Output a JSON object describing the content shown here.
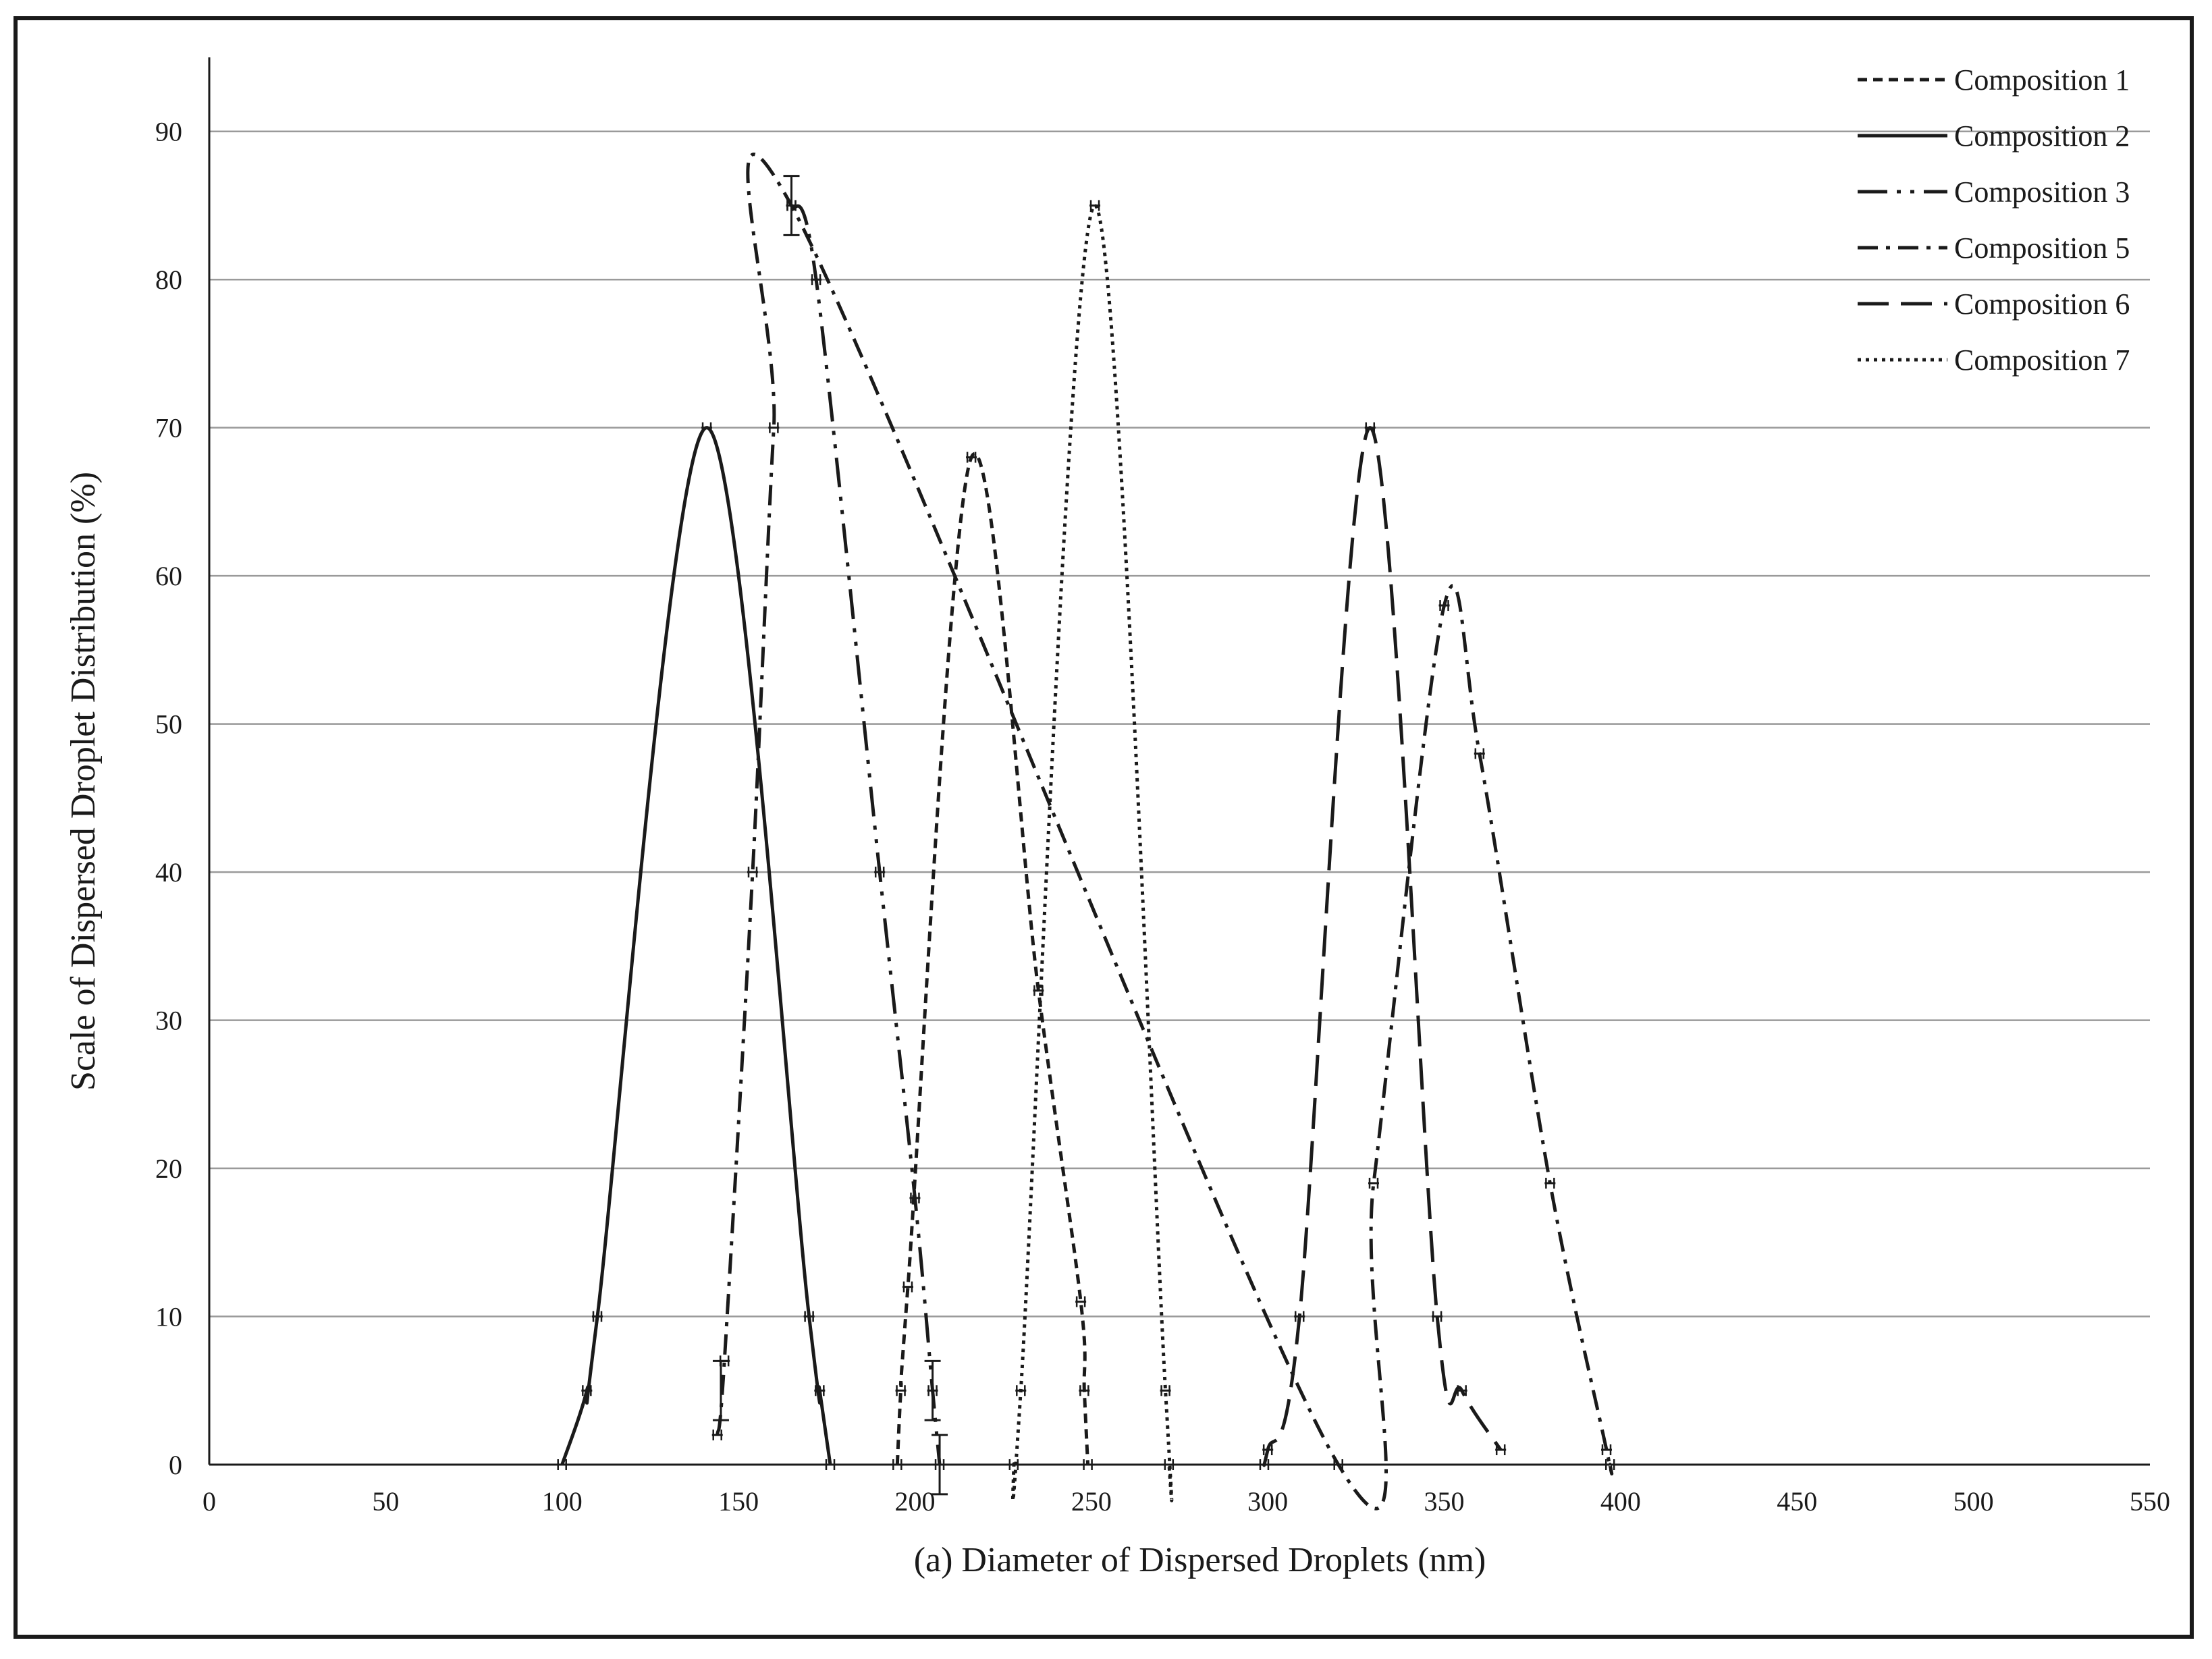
{
  "chart_data": {
    "type": "line",
    "title": "",
    "xlabel": "(a)   Diameter of Dispersed Droplets (nm)",
    "ylabel": "Scale of Dispersed Droplet Distribution (%)",
    "xlim": [
      0,
      550
    ],
    "ylim": [
      0,
      95
    ],
    "x_ticks": [
      0,
      50,
      100,
      150,
      200,
      250,
      300,
      350,
      400,
      450,
      500,
      550
    ],
    "y_ticks": [
      0,
      10,
      20,
      30,
      40,
      50,
      60,
      70,
      80,
      90
    ],
    "grid": "horizontal",
    "legend_position": "top-right",
    "series": [
      {
        "name": "Composition 1",
        "style": "short-dash",
        "points": [
          [
            195,
            0
          ],
          [
            196,
            5
          ],
          [
            198,
            12
          ],
          [
            216,
            68
          ],
          [
            235,
            32
          ],
          [
            247,
            11
          ],
          [
            248,
            5
          ],
          [
            249,
            0
          ]
        ]
      },
      {
        "name": "Composition 2",
        "style": "solid",
        "points": [
          [
            100,
            0
          ],
          [
            107,
            5
          ],
          [
            110,
            10
          ],
          [
            141,
            70
          ],
          [
            170,
            10
          ],
          [
            173,
            5
          ],
          [
            176,
            0
          ]
        ]
      },
      {
        "name": "Composition 3",
        "style": "long-dash-dot-dot",
        "points": [
          [
            165,
            85
          ],
          [
            172,
            80
          ],
          [
            190,
            40
          ],
          [
            200,
            18
          ],
          [
            205,
            5
          ],
          [
            207,
            0
          ]
        ]
      },
      {
        "name": "Composition 5",
        "style": "dash-dot",
        "points": [
          [
            144,
            2
          ],
          [
            146,
            7
          ],
          [
            154,
            40
          ],
          [
            160,
            70
          ],
          [
            165,
            85
          ],
          [
            320,
            0
          ],
          [
            330,
            19
          ],
          [
            350,
            58
          ],
          [
            360,
            48
          ],
          [
            380,
            19
          ],
          [
            396,
            1
          ],
          [
            397,
            0
          ]
        ]
      },
      {
        "name": "Composition 6",
        "style": "long-dash",
        "points": [
          [
            299,
            0
          ],
          [
            300,
            1
          ],
          [
            309,
            10
          ],
          [
            329,
            70
          ],
          [
            348,
            10
          ],
          [
            355,
            5
          ],
          [
            366,
            1
          ]
        ]
      },
      {
        "name": "Composition 7",
        "style": "dotted",
        "points": [
          [
            228,
            0
          ],
          [
            230,
            5
          ],
          [
            251,
            85
          ],
          [
            271,
            5
          ],
          [
            272,
            0
          ]
        ]
      }
    ],
    "error_bars": [
      {
        "x": 165,
        "y": 85,
        "err": 2
      },
      {
        "x": 145,
        "y": 5,
        "err": 2
      },
      {
        "x": 205,
        "y": 5,
        "err": 2
      },
      {
        "x": 207,
        "y": 0,
        "err": 2
      }
    ]
  }
}
